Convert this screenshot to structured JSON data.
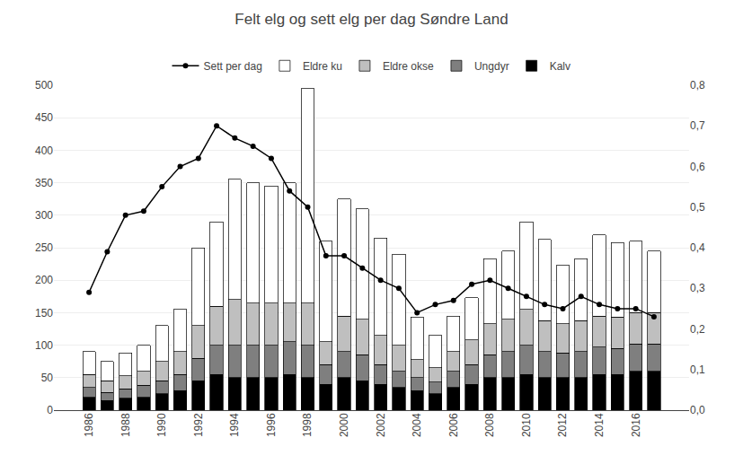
{
  "chart_data": {
    "type": "bar",
    "title": "Felt elg og sett elg per dag Søndre Land",
    "stacked": true,
    "grid": true,
    "legend": "top",
    "categories": [
      "1986",
      null,
      "1988",
      null,
      "1990",
      null,
      "1992",
      null,
      "1994",
      null,
      "1996",
      null,
      "1998",
      null,
      "2000",
      null,
      "2002",
      null,
      "2004",
      null,
      "2006",
      null,
      "2008",
      null,
      "2010",
      null,
      "2012",
      null,
      "2014",
      null,
      "2016",
      null
    ],
    "ylim": [
      0,
      500
    ],
    "yticks": [
      0,
      50,
      100,
      150,
      200,
      250,
      300,
      350,
      400,
      450,
      500
    ],
    "y2lim": [
      0,
      0.8
    ],
    "y2ticks": [
      {
        "value": 0,
        "label": "0,0"
      },
      {
        "value": 0.1,
        "label": "0,1"
      },
      {
        "value": 0.2,
        "label": "0,2"
      },
      {
        "value": 0.3,
        "label": "0,3"
      },
      {
        "value": 0.4,
        "label": "0,4"
      },
      {
        "value": 0.5,
        "label": "0,5"
      },
      {
        "value": 0.6,
        "label": "0,6"
      },
      {
        "value": 0.7,
        "label": "0,7"
      },
      {
        "value": 0.8,
        "label": "0,8"
      }
    ],
    "series": [
      {
        "name": "Kalv",
        "color": "#000000",
        "values": [
          20,
          15,
          18,
          20,
          25,
          30,
          45,
          55,
          50,
          50,
          50,
          55,
          50,
          40,
          50,
          45,
          40,
          35,
          30,
          25,
          35,
          40,
          50,
          50,
          55,
          50,
          50,
          50,
          55,
          55,
          60,
          60
        ]
      },
      {
        "name": "Ungdyr",
        "color": "#7f7f7f",
        "values": [
          15,
          12,
          15,
          18,
          20,
          25,
          35,
          45,
          50,
          50,
          50,
          50,
          50,
          30,
          40,
          40,
          30,
          25,
          20,
          18,
          25,
          30,
          35,
          40,
          45,
          40,
          38,
          40,
          42,
          40,
          42,
          42
        ]
      },
      {
        "name": "Eldre okse",
        "color": "#bfbfbf",
        "values": [
          20,
          18,
          20,
          22,
          30,
          35,
          50,
          60,
          70,
          65,
          65,
          60,
          65,
          35,
          55,
          55,
          45,
          40,
          28,
          22,
          30,
          38,
          48,
          50,
          55,
          48,
          45,
          48,
          48,
          48,
          48,
          48
        ]
      },
      {
        "name": "Eldre ku",
        "color": "#ffffff",
        "values": [
          35,
          30,
          35,
          40,
          55,
          65,
          120,
          130,
          185,
          185,
          180,
          185,
          330,
          155,
          180,
          170,
          150,
          140,
          65,
          50,
          55,
          65,
          100,
          105,
          135,
          125,
          90,
          95,
          125,
          115,
          110,
          95
        ]
      },
      {
        "name": "Sett per dag",
        "type": "line",
        "axis": "y2",
        "color": "#000000",
        "marker": "circle",
        "line_style": "solid",
        "values": [
          0.29,
          0.39,
          0.48,
          0.49,
          0.55,
          0.6,
          0.62,
          0.7,
          0.67,
          0.65,
          0.62,
          0.54,
          0.5,
          0.38,
          0.38,
          0.35,
          0.32,
          0.3,
          0.24,
          0.26,
          0.27,
          0.31,
          0.32,
          0.3,
          0.28,
          0.26,
          0.25,
          0.28,
          0.26,
          0.25,
          0.25,
          0.23
        ]
      }
    ]
  }
}
